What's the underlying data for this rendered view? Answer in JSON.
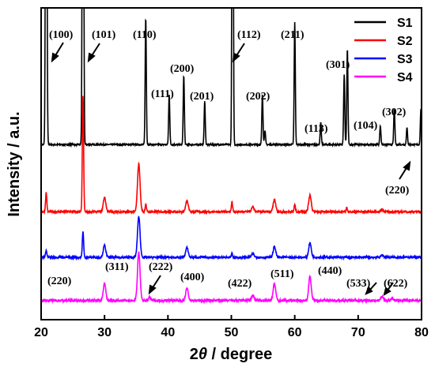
{
  "chart_data": {
    "type": "line",
    "x_axis": {
      "label_prefix": "2",
      "label_symbol": "θ",
      "label_suffix": " / degree",
      "range": [
        20,
        80
      ],
      "ticks": [
        20,
        30,
        40,
        50,
        60,
        70,
        80
      ]
    },
    "y_axis": {
      "label": "Intensity / a.u.",
      "ticks_shown": false
    },
    "grid": false,
    "legend_position": "top-right",
    "series": [
      {
        "name": "S1",
        "color": "#000000",
        "baseline": 0.68,
        "noise": 0.003,
        "peaks": [
          {
            "x": 20.8,
            "h": 2.5,
            "w": 0.1
          },
          {
            "x": 26.6,
            "h": 2.5,
            "w": 0.1
          },
          {
            "x": 36.5,
            "h": 0.53,
            "w": 0.09
          },
          {
            "x": 40.2,
            "h": 0.21,
            "w": 0.09
          },
          {
            "x": 42.5,
            "h": 0.29,
            "w": 0.09
          },
          {
            "x": 45.8,
            "h": 0.18,
            "w": 0.09
          },
          {
            "x": 50.2,
            "h": 2.5,
            "w": 0.09
          },
          {
            "x": 54.9,
            "h": 0.21,
            "w": 0.09
          },
          {
            "x": 55.3,
            "h": 0.06,
            "w": 0.09
          },
          {
            "x": 60.0,
            "h": 0.51,
            "w": 0.09
          },
          {
            "x": 64.1,
            "h": 0.09,
            "w": 0.09
          },
          {
            "x": 67.8,
            "h": 0.29,
            "w": 0.09
          },
          {
            "x": 68.3,
            "h": 0.4,
            "w": 0.09
          },
          {
            "x": 73.5,
            "h": 0.08,
            "w": 0.09
          },
          {
            "x": 75.7,
            "h": 0.15,
            "w": 0.09
          },
          {
            "x": 77.7,
            "h": 0.07,
            "w": 0.09
          },
          {
            "x": 79.9,
            "h": 0.15,
            "w": 0.09
          }
        ]
      },
      {
        "name": "S2",
        "color": "#ff0000",
        "baseline": 0.4,
        "noise": 0.004,
        "peaks": [
          {
            "x": 20.8,
            "h": 0.08,
            "w": 0.1
          },
          {
            "x": 26.6,
            "h": 0.48,
            "w": 0.1
          },
          {
            "x": 30.0,
            "h": 0.06,
            "w": 0.2
          },
          {
            "x": 35.4,
            "h": 0.2,
            "w": 0.2
          },
          {
            "x": 36.5,
            "h": 0.03,
            "w": 0.1
          },
          {
            "x": 43.0,
            "h": 0.045,
            "w": 0.2
          },
          {
            "x": 50.1,
            "h": 0.04,
            "w": 0.1
          },
          {
            "x": 53.4,
            "h": 0.02,
            "w": 0.2
          },
          {
            "x": 56.8,
            "h": 0.05,
            "w": 0.2
          },
          {
            "x": 60.0,
            "h": 0.03,
            "w": 0.1
          },
          {
            "x": 62.4,
            "h": 0.07,
            "w": 0.2
          },
          {
            "x": 68.2,
            "h": 0.015,
            "w": 0.1
          },
          {
            "x": 73.8,
            "h": 0.01,
            "w": 0.2
          }
        ]
      },
      {
        "name": "S3",
        "color": "#0000ff",
        "baseline": 0.21,
        "noise": 0.004,
        "peaks": [
          {
            "x": 20.8,
            "h": 0.03,
            "w": 0.1
          },
          {
            "x": 26.6,
            "h": 0.11,
            "w": 0.1
          },
          {
            "x": 30.0,
            "h": 0.05,
            "w": 0.2
          },
          {
            "x": 35.4,
            "h": 0.17,
            "w": 0.2
          },
          {
            "x": 43.0,
            "h": 0.04,
            "w": 0.2
          },
          {
            "x": 50.1,
            "h": 0.015,
            "w": 0.1
          },
          {
            "x": 53.4,
            "h": 0.015,
            "w": 0.2
          },
          {
            "x": 56.8,
            "h": 0.045,
            "w": 0.2
          },
          {
            "x": 62.4,
            "h": 0.06,
            "w": 0.2
          },
          {
            "x": 73.8,
            "h": 0.01,
            "w": 0.2
          }
        ]
      },
      {
        "name": "S4",
        "color": "#ff00ff",
        "baseline": 0.03,
        "noise": 0.005,
        "peaks": [
          {
            "x": 30.0,
            "h": 0.07,
            "w": 0.2
          },
          {
            "x": 35.4,
            "h": 0.2,
            "w": 0.2
          },
          {
            "x": 37.1,
            "h": 0.015,
            "w": 0.15
          },
          {
            "x": 43.0,
            "h": 0.05,
            "w": 0.2
          },
          {
            "x": 53.4,
            "h": 0.02,
            "w": 0.2
          },
          {
            "x": 56.8,
            "h": 0.07,
            "w": 0.2
          },
          {
            "x": 62.4,
            "h": 0.1,
            "w": 0.2
          },
          {
            "x": 73.8,
            "h": 0.015,
            "w": 0.2
          },
          {
            "x": 75.4,
            "h": 0.01,
            "w": 0.2
          }
        ]
      }
    ],
    "annotations": [
      {
        "text": "(100)"
      },
      {
        "text": "(101)"
      },
      {
        "text": "(110)"
      },
      {
        "text": "(111)"
      },
      {
        "text": "(200)"
      },
      {
        "text": "(201)"
      },
      {
        "text": "(112)"
      },
      {
        "text": "(211)"
      },
      {
        "text": "(202)"
      },
      {
        "text": "(113)"
      },
      {
        "text": "(301)"
      },
      {
        "text": "(104)"
      },
      {
        "text": "(302)"
      },
      {
        "text": "(220)"
      },
      {
        "text": "(220)"
      },
      {
        "text": "(311)"
      },
      {
        "text": "(222)"
      },
      {
        "text": "(400)"
      },
      {
        "text": "(422)"
      },
      {
        "text": "(511)"
      },
      {
        "text": "(440)"
      },
      {
        "text": "(533)"
      },
      {
        "text": "(622)"
      }
    ]
  }
}
